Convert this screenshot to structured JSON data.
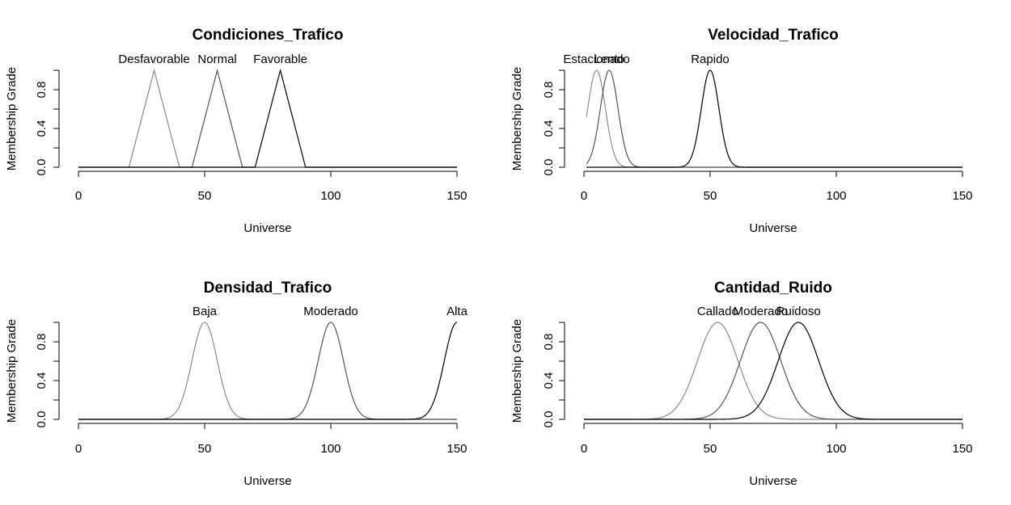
{
  "chart_data": [
    {
      "type": "line",
      "title": "Condiciones_Trafico",
      "xlabel": "Universe",
      "ylabel": "Membership Grade",
      "xlim": [
        0,
        150
      ],
      "ylim": [
        0,
        1
      ],
      "xticks": [
        "0",
        "50",
        "100",
        "150"
      ],
      "yticks": [
        "0.0",
        "0.4",
        "0.8"
      ],
      "series": [
        {
          "name": "Desfavorable",
          "color": "#8a8a8a",
          "x": [
            0,
            20,
            30,
            40,
            150
          ],
          "y": [
            0,
            0,
            1,
            0,
            0
          ]
        },
        {
          "name": "Normal",
          "color": "#555555",
          "x": [
            0,
            45,
            55,
            65,
            150
          ],
          "y": [
            0,
            0,
            1,
            0,
            0
          ]
        },
        {
          "name": "Favorable",
          "color": "#000000",
          "x": [
            0,
            70,
            80,
            90,
            150
          ],
          "y": [
            0,
            0,
            1,
            0,
            0
          ]
        }
      ]
    },
    {
      "type": "line",
      "title": "Velocidad_Trafico",
      "xlabel": "Universe",
      "ylabel": "Membership Grade",
      "xlim": [
        0,
        150
      ],
      "ylim": [
        0,
        1
      ],
      "xticks": [
        "0",
        "50",
        "100",
        "150"
      ],
      "yticks": [
        "0.0",
        "0.4",
        "0.8"
      ],
      "series": [
        {
          "name": "Estacionado",
          "color": "#8a8a8a",
          "curve": "gauss",
          "mean": 5,
          "sd": 3.5,
          "xrange": [
            1,
            150
          ]
        },
        {
          "name": "Lento",
          "color": "#555555",
          "curve": "gauss",
          "mean": 10,
          "sd": 3.5,
          "xrange": [
            1,
            150
          ]
        },
        {
          "name": "Rapido",
          "color": "#000000",
          "curve": "gauss",
          "mean": 50,
          "sd": 3.5,
          "xrange": [
            1,
            150
          ]
        }
      ]
    },
    {
      "type": "line",
      "title": "Densidad_Trafico",
      "xlabel": "Universe",
      "ylabel": "Membership Grade",
      "xlim": [
        0,
        150
      ],
      "ylim": [
        0,
        1
      ],
      "xticks": [
        "0",
        "50",
        "100",
        "150"
      ],
      "yticks": [
        "0.0",
        "0.4",
        "0.8"
      ],
      "series": [
        {
          "name": "Baja",
          "color": "#8a8a8a",
          "curve": "gauss",
          "mean": 50,
          "sd": 5,
          "xrange": [
            0,
            150
          ]
        },
        {
          "name": "Moderado",
          "color": "#555555",
          "curve": "gauss",
          "mean": 100,
          "sd": 5,
          "xrange": [
            0,
            150
          ]
        },
        {
          "name": "Alta",
          "color": "#000000",
          "curve": "gauss",
          "mean": 150,
          "sd": 5,
          "xrange": [
            0,
            150
          ]
        }
      ]
    },
    {
      "type": "line",
      "title": "Cantidad_Ruido",
      "xlabel": "Universe",
      "ylabel": "Membership Grade",
      "xlim": [
        0,
        150
      ],
      "ylim": [
        0,
        1
      ],
      "xticks": [
        "0",
        "50",
        "100",
        "150"
      ],
      "yticks": [
        "0.0",
        "0.4",
        "0.8"
      ],
      "series": [
        {
          "name": "Callado",
          "color": "#8a8a8a",
          "curve": "gauss",
          "mean": 53,
          "sd": 8,
          "xrange": [
            0,
            150
          ]
        },
        {
          "name": "Moderado",
          "color": "#555555",
          "curve": "gauss",
          "mean": 70,
          "sd": 8,
          "xrange": [
            0,
            150
          ]
        },
        {
          "name": "Ruidoso",
          "color": "#000000",
          "curve": "gauss",
          "mean": 85,
          "sd": 8,
          "xrange": [
            0,
            150
          ]
        }
      ]
    }
  ]
}
